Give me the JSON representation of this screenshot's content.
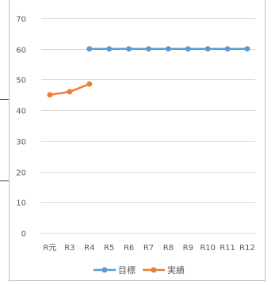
{
  "chart_data": {
    "type": "line",
    "categories": [
      "R元",
      "R3",
      "R4",
      "R5",
      "R6",
      "R7",
      "R8",
      "R9",
      "R10",
      "R11",
      "R12"
    ],
    "series": [
      {
        "name": "目標",
        "color": "#5b9bd5",
        "values": [
          null,
          null,
          60,
          60,
          60,
          60,
          60,
          60,
          60,
          60,
          60
        ]
      },
      {
        "name": "実績",
        "color": "#ed7d31",
        "values": [
          45,
          46,
          48.5,
          null,
          null,
          null,
          null,
          null,
          null,
          null,
          null
        ]
      }
    ],
    "ylim": [
      0,
      70
    ],
    "yticks": [
      0,
      10,
      20,
      30,
      40,
      50,
      60,
      70
    ],
    "grid": true,
    "legend_position": "bottom",
    "axis_color": "#595959",
    "grid_color": "#d9d9d9"
  }
}
